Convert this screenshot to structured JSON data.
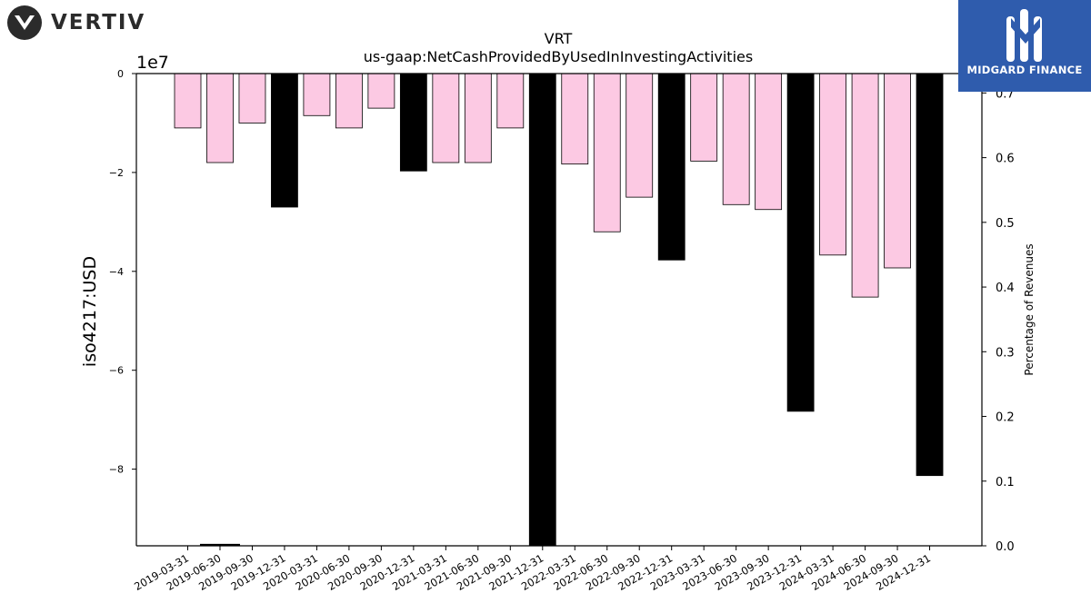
{
  "brand": {
    "left_logo_text": "VERTIV",
    "left_logo_icon": "vertiv-v-icon",
    "right_logo_text": "MIDGARD FINANCE",
    "right_logo_icon": "midgard-m-icon",
    "right_logo_bg": "#2f5cad"
  },
  "chart_data": {
    "type": "bar",
    "title": "VRT",
    "subtitle": "us-gaap:NetCashProvidedByUsedInInvestingActivities",
    "ylabel": "iso4217:USD",
    "ylabel_right": "Percentage of Revenues",
    "y_offset_label": "1e7",
    "ylim": [
      -9.55,
      0
    ],
    "yticks": [
      0,
      -2,
      -4,
      -6,
      -8
    ],
    "ytick_labels": [
      "0",
      "−2",
      "−4",
      "−6",
      "−8"
    ],
    "y2lim": [
      0.0,
      0.73
    ],
    "y2ticks": [
      0.0,
      0.1,
      0.2,
      0.3,
      0.4,
      0.5,
      0.6,
      0.7
    ],
    "y2tick_labels": [
      "0.0",
      "0.1",
      "0.2",
      "0.3",
      "0.4",
      "0.5",
      "0.6",
      "0.7"
    ],
    "y_scale_note": "values in units of 1e7 USD",
    "quarter_color": "#fcc9e3",
    "annual_color": "#000000",
    "grid": false,
    "legend": "none",
    "categories": [
      "2019-03-31",
      "2019-06-30",
      "2019-09-30",
      "2019-12-31",
      "2020-03-31",
      "2020-06-30",
      "2020-09-30",
      "2020-12-31",
      "2021-03-31",
      "2021-06-30",
      "2021-09-30",
      "2021-12-31",
      "2022-03-31",
      "2022-06-30",
      "2022-09-30",
      "2022-12-31",
      "2023-03-31",
      "2023-06-30",
      "2023-09-30",
      "2023-12-31",
      "2024-03-31",
      "2024-06-30",
      "2024-09-30",
      "2024-12-31"
    ],
    "values": [
      -1.1,
      -1.8,
      -1.0,
      -2.7,
      -0.85,
      -1.1,
      -0.7,
      -1.97,
      -1.8,
      -1.8,
      -1.1,
      -9.55,
      -1.83,
      -3.2,
      -2.5,
      -3.77,
      -1.77,
      -2.65,
      -2.75,
      -6.83,
      -3.67,
      -4.52,
      -3.93,
      -8.13
    ],
    "is_annual": [
      false,
      false,
      false,
      true,
      false,
      false,
      false,
      true,
      false,
      false,
      false,
      true,
      false,
      false,
      false,
      true,
      false,
      false,
      false,
      true,
      false,
      false,
      false,
      true
    ],
    "percent_series": [
      null,
      0.0015,
      null,
      null,
      null,
      null,
      null,
      null,
      null,
      null,
      null,
      null,
      null,
      null,
      null,
      null,
      null,
      null,
      null,
      null,
      null,
      null,
      null,
      null
    ]
  }
}
